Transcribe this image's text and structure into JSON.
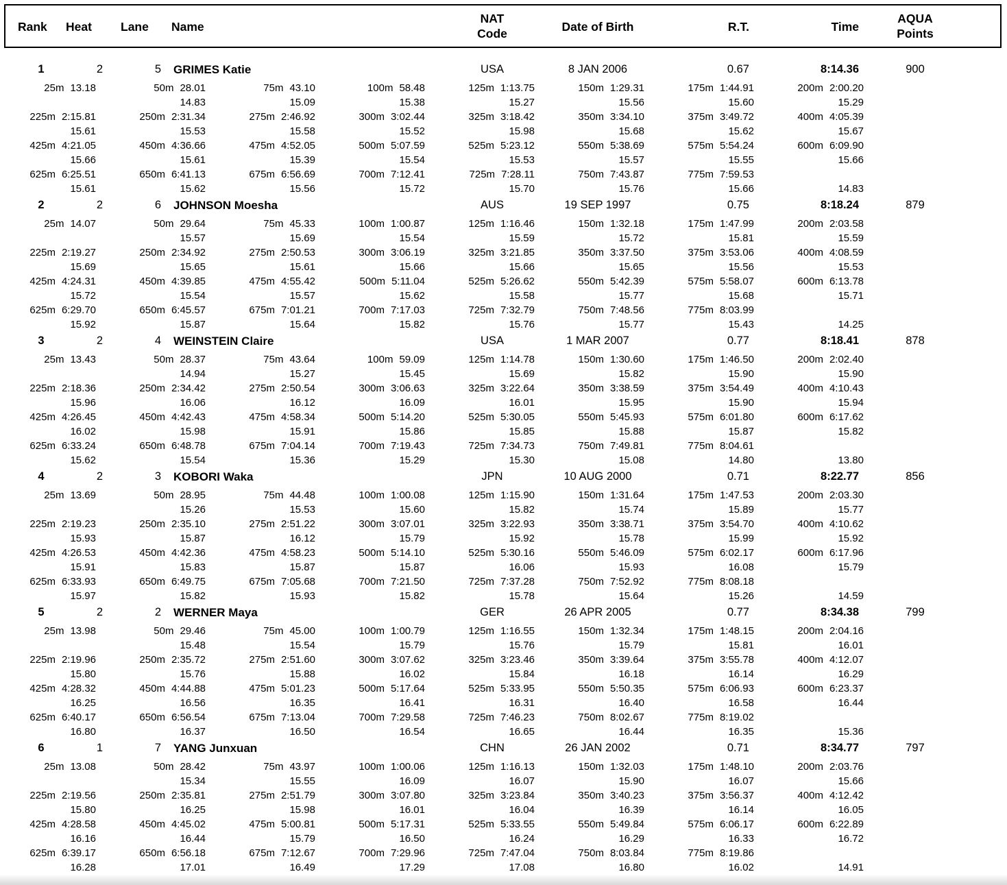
{
  "colors": {
    "text": "#000000",
    "border": "#000000",
    "background": "#ffffff"
  },
  "header": {
    "rank": "Rank",
    "heat": "Heat",
    "lane": "Lane",
    "name": "Name",
    "nat_line1": "NAT",
    "nat_line2": "Code",
    "dob": "Date of Birth",
    "rt": "R.T.",
    "time": "Time",
    "points_line1": "AQUA",
    "points_line2": "Points"
  },
  "swimmers": [
    {
      "rank": "1",
      "heat": "2",
      "lane": "5",
      "name": "GRIMES Katie",
      "nat": "USA",
      "dob": "8 JAN 2006",
      "rt": "0.67",
      "time": "8:14.36",
      "points": "900",
      "split_rows": [
        [
          [
            "25m",
            "13.18",
            ""
          ],
          [
            "50m",
            "28.01",
            "14.83"
          ],
          [
            "75m",
            "43.10",
            "15.09"
          ],
          [
            "100m",
            "58.48",
            "15.38"
          ],
          [
            "125m",
            "1:13.75",
            "15.27"
          ],
          [
            "150m",
            "1:29.31",
            "15.56"
          ],
          [
            "175m",
            "1:44.91",
            "15.60"
          ],
          [
            "200m",
            "2:00.20",
            "15.29"
          ]
        ],
        [
          [
            "225m",
            "2:15.81",
            "15.61"
          ],
          [
            "250m",
            "2:31.34",
            "15.53"
          ],
          [
            "275m",
            "2:46.92",
            "15.58"
          ],
          [
            "300m",
            "3:02.44",
            "15.52"
          ],
          [
            "325m",
            "3:18.42",
            "15.98"
          ],
          [
            "350m",
            "3:34.10",
            "15.68"
          ],
          [
            "375m",
            "3:49.72",
            "15.62"
          ],
          [
            "400m",
            "4:05.39",
            "15.67"
          ]
        ],
        [
          [
            "425m",
            "4:21.05",
            "15.66"
          ],
          [
            "450m",
            "4:36.66",
            "15.61"
          ],
          [
            "475m",
            "4:52.05",
            "15.39"
          ],
          [
            "500m",
            "5:07.59",
            "15.54"
          ],
          [
            "525m",
            "5:23.12",
            "15.53"
          ],
          [
            "550m",
            "5:38.69",
            "15.57"
          ],
          [
            "575m",
            "5:54.24",
            "15.55"
          ],
          [
            "600m",
            "6:09.90",
            "15.66"
          ]
        ],
        [
          [
            "625m",
            "6:25.51",
            "15.61"
          ],
          [
            "650m",
            "6:41.13",
            "15.62"
          ],
          [
            "675m",
            "6:56.69",
            "15.56"
          ],
          [
            "700m",
            "7:12.41",
            "15.72"
          ],
          [
            "725m",
            "7:28.11",
            "15.70"
          ],
          [
            "750m",
            "7:43.87",
            "15.76"
          ],
          [
            "775m",
            "7:59.53",
            "15.66"
          ],
          [
            "",
            "",
            "14.83"
          ]
        ]
      ]
    },
    {
      "rank": "2",
      "heat": "2",
      "lane": "6",
      "name": "JOHNSON Moesha",
      "nat": "AUS",
      "dob": "19 SEP 1997",
      "rt": "0.75",
      "time": "8:18.24",
      "points": "879",
      "split_rows": [
        [
          [
            "25m",
            "14.07",
            ""
          ],
          [
            "50m",
            "29.64",
            "15.57"
          ],
          [
            "75m",
            "45.33",
            "15.69"
          ],
          [
            "100m",
            "1:00.87",
            "15.54"
          ],
          [
            "125m",
            "1:16.46",
            "15.59"
          ],
          [
            "150m",
            "1:32.18",
            "15.72"
          ],
          [
            "175m",
            "1:47.99",
            "15.81"
          ],
          [
            "200m",
            "2:03.58",
            "15.59"
          ]
        ],
        [
          [
            "225m",
            "2:19.27",
            "15.69"
          ],
          [
            "250m",
            "2:34.92",
            "15.65"
          ],
          [
            "275m",
            "2:50.53",
            "15.61"
          ],
          [
            "300m",
            "3:06.19",
            "15.66"
          ],
          [
            "325m",
            "3:21.85",
            "15.66"
          ],
          [
            "350m",
            "3:37.50",
            "15.65"
          ],
          [
            "375m",
            "3:53.06",
            "15.56"
          ],
          [
            "400m",
            "4:08.59",
            "15.53"
          ]
        ],
        [
          [
            "425m",
            "4:24.31",
            "15.72"
          ],
          [
            "450m",
            "4:39.85",
            "15.54"
          ],
          [
            "475m",
            "4:55.42",
            "15.57"
          ],
          [
            "500m",
            "5:11.04",
            "15.62"
          ],
          [
            "525m",
            "5:26.62",
            "15.58"
          ],
          [
            "550m",
            "5:42.39",
            "15.77"
          ],
          [
            "575m",
            "5:58.07",
            "15.68"
          ],
          [
            "600m",
            "6:13.78",
            "15.71"
          ]
        ],
        [
          [
            "625m",
            "6:29.70",
            "15.92"
          ],
          [
            "650m",
            "6:45.57",
            "15.87"
          ],
          [
            "675m",
            "7:01.21",
            "15.64"
          ],
          [
            "700m",
            "7:17.03",
            "15.82"
          ],
          [
            "725m",
            "7:32.79",
            "15.76"
          ],
          [
            "750m",
            "7:48.56",
            "15.77"
          ],
          [
            "775m",
            "8:03.99",
            "15.43"
          ],
          [
            "",
            "",
            "14.25"
          ]
        ]
      ]
    },
    {
      "rank": "3",
      "heat": "2",
      "lane": "4",
      "name": "WEINSTEIN Claire",
      "nat": "USA",
      "dob": "1 MAR 2007",
      "rt": "0.77",
      "time": "8:18.41",
      "points": "878",
      "split_rows": [
        [
          [
            "25m",
            "13.43",
            ""
          ],
          [
            "50m",
            "28.37",
            "14.94"
          ],
          [
            "75m",
            "43.64",
            "15.27"
          ],
          [
            "100m",
            "59.09",
            "15.45"
          ],
          [
            "125m",
            "1:14.78",
            "15.69"
          ],
          [
            "150m",
            "1:30.60",
            "15.82"
          ],
          [
            "175m",
            "1:46.50",
            "15.90"
          ],
          [
            "200m",
            "2:02.40",
            "15.90"
          ]
        ],
        [
          [
            "225m",
            "2:18.36",
            "15.96"
          ],
          [
            "250m",
            "2:34.42",
            "16.06"
          ],
          [
            "275m",
            "2:50.54",
            "16.12"
          ],
          [
            "300m",
            "3:06.63",
            "16.09"
          ],
          [
            "325m",
            "3:22.64",
            "16.01"
          ],
          [
            "350m",
            "3:38.59",
            "15.95"
          ],
          [
            "375m",
            "3:54.49",
            "15.90"
          ],
          [
            "400m",
            "4:10.43",
            "15.94"
          ]
        ],
        [
          [
            "425m",
            "4:26.45",
            "16.02"
          ],
          [
            "450m",
            "4:42.43",
            "15.98"
          ],
          [
            "475m",
            "4:58.34",
            "15.91"
          ],
          [
            "500m",
            "5:14.20",
            "15.86"
          ],
          [
            "525m",
            "5:30.05",
            "15.85"
          ],
          [
            "550m",
            "5:45.93",
            "15.88"
          ],
          [
            "575m",
            "6:01.80",
            "15.87"
          ],
          [
            "600m",
            "6:17.62",
            "15.82"
          ]
        ],
        [
          [
            "625m",
            "6:33.24",
            "15.62"
          ],
          [
            "650m",
            "6:48.78",
            "15.54"
          ],
          [
            "675m",
            "7:04.14",
            "15.36"
          ],
          [
            "700m",
            "7:19.43",
            "15.29"
          ],
          [
            "725m",
            "7:34.73",
            "15.30"
          ],
          [
            "750m",
            "7:49.81",
            "15.08"
          ],
          [
            "775m",
            "8:04.61",
            "14.80"
          ],
          [
            "",
            "",
            "13.80"
          ]
        ]
      ]
    },
    {
      "rank": "4",
      "heat": "2",
      "lane": "3",
      "name": "KOBORI Waka",
      "nat": "JPN",
      "dob": "10 AUG 2000",
      "rt": "0.71",
      "time": "8:22.77",
      "points": "856",
      "split_rows": [
        [
          [
            "25m",
            "13.69",
            ""
          ],
          [
            "50m",
            "28.95",
            "15.26"
          ],
          [
            "75m",
            "44.48",
            "15.53"
          ],
          [
            "100m",
            "1:00.08",
            "15.60"
          ],
          [
            "125m",
            "1:15.90",
            "15.82"
          ],
          [
            "150m",
            "1:31.64",
            "15.74"
          ],
          [
            "175m",
            "1:47.53",
            "15.89"
          ],
          [
            "200m",
            "2:03.30",
            "15.77"
          ]
        ],
        [
          [
            "225m",
            "2:19.23",
            "15.93"
          ],
          [
            "250m",
            "2:35.10",
            "15.87"
          ],
          [
            "275m",
            "2:51.22",
            "16.12"
          ],
          [
            "300m",
            "3:07.01",
            "15.79"
          ],
          [
            "325m",
            "3:22.93",
            "15.92"
          ],
          [
            "350m",
            "3:38.71",
            "15.78"
          ],
          [
            "375m",
            "3:54.70",
            "15.99"
          ],
          [
            "400m",
            "4:10.62",
            "15.92"
          ]
        ],
        [
          [
            "425m",
            "4:26.53",
            "15.91"
          ],
          [
            "450m",
            "4:42.36",
            "15.83"
          ],
          [
            "475m",
            "4:58.23",
            "15.87"
          ],
          [
            "500m",
            "5:14.10",
            "15.87"
          ],
          [
            "525m",
            "5:30.16",
            "16.06"
          ],
          [
            "550m",
            "5:46.09",
            "15.93"
          ],
          [
            "575m",
            "6:02.17",
            "16.08"
          ],
          [
            "600m",
            "6:17.96",
            "15.79"
          ]
        ],
        [
          [
            "625m",
            "6:33.93",
            "15.97"
          ],
          [
            "650m",
            "6:49.75",
            "15.82"
          ],
          [
            "675m",
            "7:05.68",
            "15.93"
          ],
          [
            "700m",
            "7:21.50",
            "15.82"
          ],
          [
            "725m",
            "7:37.28",
            "15.78"
          ],
          [
            "750m",
            "7:52.92",
            "15.64"
          ],
          [
            "775m",
            "8:08.18",
            "15.26"
          ],
          [
            "",
            "",
            "14.59"
          ]
        ]
      ]
    },
    {
      "rank": "5",
      "heat": "2",
      "lane": "2",
      "name": "WERNER Maya",
      "nat": "GER",
      "dob": "26 APR 2005",
      "rt": "0.77",
      "time": "8:34.38",
      "points": "799",
      "split_rows": [
        [
          [
            "25m",
            "13.98",
            ""
          ],
          [
            "50m",
            "29.46",
            "15.48"
          ],
          [
            "75m",
            "45.00",
            "15.54"
          ],
          [
            "100m",
            "1:00.79",
            "15.79"
          ],
          [
            "125m",
            "1:16.55",
            "15.76"
          ],
          [
            "150m",
            "1:32.34",
            "15.79"
          ],
          [
            "175m",
            "1:48.15",
            "15.81"
          ],
          [
            "200m",
            "2:04.16",
            "16.01"
          ]
        ],
        [
          [
            "225m",
            "2:19.96",
            "15.80"
          ],
          [
            "250m",
            "2:35.72",
            "15.76"
          ],
          [
            "275m",
            "2:51.60",
            "15.88"
          ],
          [
            "300m",
            "3:07.62",
            "16.02"
          ],
          [
            "325m",
            "3:23.46",
            "15.84"
          ],
          [
            "350m",
            "3:39.64",
            "16.18"
          ],
          [
            "375m",
            "3:55.78",
            "16.14"
          ],
          [
            "400m",
            "4:12.07",
            "16.29"
          ]
        ],
        [
          [
            "425m",
            "4:28.32",
            "16.25"
          ],
          [
            "450m",
            "4:44.88",
            "16.56"
          ],
          [
            "475m",
            "5:01.23",
            "16.35"
          ],
          [
            "500m",
            "5:17.64",
            "16.41"
          ],
          [
            "525m",
            "5:33.95",
            "16.31"
          ],
          [
            "550m",
            "5:50.35",
            "16.40"
          ],
          [
            "575m",
            "6:06.93",
            "16.58"
          ],
          [
            "600m",
            "6:23.37",
            "16.44"
          ]
        ],
        [
          [
            "625m",
            "6:40.17",
            "16.80"
          ],
          [
            "650m",
            "6:56.54",
            "16.37"
          ],
          [
            "675m",
            "7:13.04",
            "16.50"
          ],
          [
            "700m",
            "7:29.58",
            "16.54"
          ],
          [
            "725m",
            "7:46.23",
            "16.65"
          ],
          [
            "750m",
            "8:02.67",
            "16.44"
          ],
          [
            "775m",
            "8:19.02",
            "16.35"
          ],
          [
            "",
            "",
            "15.36"
          ]
        ]
      ]
    },
    {
      "rank": "6",
      "heat": "1",
      "lane": "7",
      "name": "YANG Junxuan",
      "nat": "CHN",
      "dob": "26 JAN 2002",
      "rt": "0.71",
      "time": "8:34.77",
      "points": "797",
      "split_rows": [
        [
          [
            "25m",
            "13.08",
            ""
          ],
          [
            "50m",
            "28.42",
            "15.34"
          ],
          [
            "75m",
            "43.97",
            "15.55"
          ],
          [
            "100m",
            "1:00.06",
            "16.09"
          ],
          [
            "125m",
            "1:16.13",
            "16.07"
          ],
          [
            "150m",
            "1:32.03",
            "15.90"
          ],
          [
            "175m",
            "1:48.10",
            "16.07"
          ],
          [
            "200m",
            "2:03.76",
            "15.66"
          ]
        ],
        [
          [
            "225m",
            "2:19.56",
            "15.80"
          ],
          [
            "250m",
            "2:35.81",
            "16.25"
          ],
          [
            "275m",
            "2:51.79",
            "15.98"
          ],
          [
            "300m",
            "3:07.80",
            "16.01"
          ],
          [
            "325m",
            "3:23.84",
            "16.04"
          ],
          [
            "350m",
            "3:40.23",
            "16.39"
          ],
          [
            "375m",
            "3:56.37",
            "16.14"
          ],
          [
            "400m",
            "4:12.42",
            "16.05"
          ]
        ],
        [
          [
            "425m",
            "4:28.58",
            "16.16"
          ],
          [
            "450m",
            "4:45.02",
            "16.44"
          ],
          [
            "475m",
            "5:00.81",
            "15.79"
          ],
          [
            "500m",
            "5:17.31",
            "16.50"
          ],
          [
            "525m",
            "5:33.55",
            "16.24"
          ],
          [
            "550m",
            "5:49.84",
            "16.29"
          ],
          [
            "575m",
            "6:06.17",
            "16.33"
          ],
          [
            "600m",
            "6:22.89",
            "16.72"
          ]
        ],
        [
          [
            "625m",
            "6:39.17",
            "16.28"
          ],
          [
            "650m",
            "6:56.18",
            "17.01"
          ],
          [
            "675m",
            "7:12.67",
            "16.49"
          ],
          [
            "700m",
            "7:29.96",
            "17.29"
          ],
          [
            "725m",
            "7:47.04",
            "17.08"
          ],
          [
            "750m",
            "8:03.84",
            "16.80"
          ],
          [
            "775m",
            "8:19.86",
            "16.02"
          ],
          [
            "",
            "",
            "14.91"
          ]
        ]
      ]
    }
  ]
}
